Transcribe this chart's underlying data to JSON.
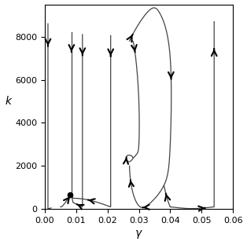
{
  "xlabel": "\\gamma",
  "ylabel": "k",
  "xlim": [
    0,
    0.06
  ],
  "ylim": [
    0,
    9500
  ],
  "xticks": [
    0,
    0.01,
    0.02,
    0.03,
    0.04,
    0.05,
    0.06
  ],
  "yticks": [
    0,
    2000,
    4000,
    6000,
    8000
  ],
  "fixed_point": [
    0.008,
    650
  ],
  "line_color": "#444444",
  "arrow_color": "#000000",
  "figsize": [
    3.14,
    3.12
  ],
  "dpi": 100
}
